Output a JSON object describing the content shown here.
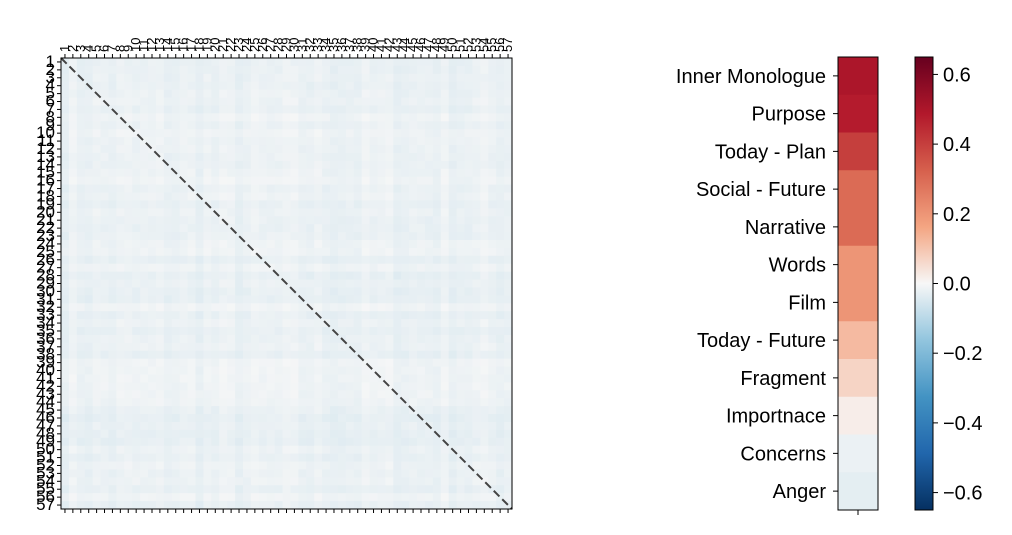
{
  "chart_data": [
    {
      "type": "heatmap",
      "title": "",
      "xlabel": "",
      "ylabel": "",
      "rows": [
        "1",
        "2",
        "3",
        "4",
        "5",
        "6",
        "7",
        "8",
        "9",
        "10",
        "11",
        "12",
        "13",
        "14",
        "15",
        "16",
        "17",
        "18",
        "19",
        "20",
        "21",
        "22",
        "23",
        "24",
        "25",
        "26",
        "27",
        "28",
        "29",
        "30",
        "31",
        "32",
        "33",
        "34",
        "35",
        "36",
        "37",
        "38",
        "39",
        "40",
        "41",
        "42",
        "43",
        "44",
        "45",
        "46",
        "47",
        "48",
        "49",
        "50",
        "51",
        "52",
        "53",
        "54",
        "55",
        "56",
        "57"
      ],
      "columns": [
        "1",
        "2",
        "3",
        "4",
        "5",
        "6",
        "7",
        "8",
        "9",
        "10",
        "11",
        "12",
        "13",
        "14",
        "15",
        "16",
        "17",
        "18",
        "19",
        "20",
        "21",
        "22",
        "23",
        "24",
        "25",
        "26",
        "27",
        "28",
        "29",
        "30",
        "31",
        "32",
        "33",
        "34",
        "35",
        "36",
        "37",
        "38",
        "39",
        "40",
        "41",
        "42",
        "43",
        "44",
        "45",
        "46",
        "47",
        "48",
        "49",
        "50",
        "51",
        "52",
        "53",
        "54",
        "55",
        "56",
        "57"
      ],
      "value_range": [
        -0.05,
        0.02
      ],
      "typical_value": -0.02,
      "diagonal_line": "dashed"
    },
    {
      "type": "heatmap",
      "title": "",
      "categories": [
        "Inner Monologue",
        "Purpose",
        "Today - Plan",
        "Social - Future",
        "Narrative",
        "Words",
        "Film",
        "Today - Future",
        "Fragment",
        "Importnace",
        "Concerns",
        "Anger"
      ],
      "values": [
        0.5,
        0.48,
        0.4,
        0.3,
        0.3,
        0.2,
        0.2,
        0.12,
        0.07,
        0.02,
        -0.02,
        -0.03
      ]
    },
    {
      "type": "colorbar",
      "colormap": "RdBu_r",
      "vmin": -0.65,
      "vmax": 0.65,
      "ticks": [
        "0.6",
        "0.4",
        "0.2",
        "0.0",
        "−0.2",
        "−0.4",
        "−0.6"
      ],
      "tick_values": [
        0.6,
        0.4,
        0.2,
        0.0,
        -0.2,
        -0.4,
        -0.6
      ]
    }
  ]
}
